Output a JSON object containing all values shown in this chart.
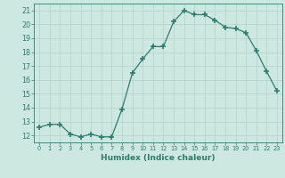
{
  "x": [
    0,
    1,
    2,
    3,
    4,
    5,
    6,
    7,
    8,
    9,
    10,
    11,
    12,
    13,
    14,
    15,
    16,
    17,
    18,
    19,
    20,
    21,
    22,
    23
  ],
  "y": [
    12.6,
    12.8,
    12.8,
    12.1,
    11.9,
    12.1,
    11.9,
    11.9,
    13.9,
    16.5,
    17.5,
    18.4,
    18.4,
    20.2,
    21.0,
    20.7,
    20.7,
    20.3,
    19.8,
    19.7,
    19.4,
    18.1,
    16.6,
    15.2
  ],
  "line_color": "#2d7d6e",
  "marker": "+",
  "marker_size": 4,
  "marker_lw": 1.2,
  "xlabel": "Humidex (Indice chaleur)",
  "xlim": [
    -0.5,
    23.5
  ],
  "ylim": [
    11.5,
    21.5
  ],
  "yticks": [
    12,
    13,
    14,
    15,
    16,
    17,
    18,
    19,
    20,
    21
  ],
  "xticks": [
    0,
    1,
    2,
    3,
    4,
    5,
    6,
    7,
    8,
    9,
    10,
    11,
    12,
    13,
    14,
    15,
    16,
    17,
    18,
    19,
    20,
    21,
    22,
    23
  ],
  "bg_color": "#cce8e0",
  "grid_color": "#b8d4cc",
  "tick_color": "#2d7d6e",
  "xlabel_fontsize": 6.5,
  "xlabel_bold": true,
  "xtick_fontsize": 4.8,
  "ytick_fontsize": 5.8
}
